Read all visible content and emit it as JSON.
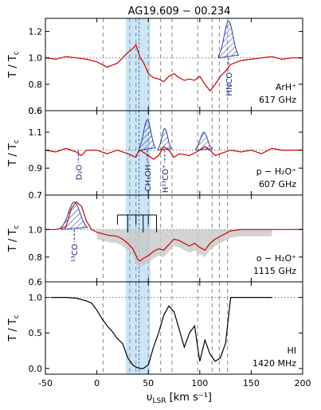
{
  "chart_data": {
    "type": "line",
    "title": "AG19.609 − 00.234",
    "xlabel": "υ",
    "xlabel_sub": "LSR",
    "xlabel_unit": " [km s⁻¹]",
    "xlim": [
      -50,
      200
    ],
    "xticks": [
      -50,
      0,
      50,
      100,
      150,
      200
    ],
    "shaded_band": [
      28,
      52
    ],
    "systemic_velocity": 41,
    "component_velocities": [
      6,
      32,
      38,
      50,
      62,
      73,
      98,
      112,
      119,
      127
    ],
    "colors": {
      "spectrum": "#cc0000",
      "hi": "#000000",
      "band": "#cce5f6",
      "hatch": "#2a3f9a",
      "label": "#1a237e",
      "vline": "#2b7cd3",
      "fit_gray": "#c8c8c8"
    },
    "panels": [
      {
        "id": "arhp",
        "ylabel": "T / T",
        "ylabel_sub": "c",
        "ylim": [
          0.6,
          1.3
        ],
        "yticks": [
          0.6,
          0.8,
          1.0,
          1.2
        ],
        "species": "ArH⁺",
        "frequency": "617 GHz",
        "baseline": 1.0,
        "series": {
          "x": [
            -50,
            -40,
            -30,
            -20,
            -10,
            0,
            10,
            20,
            25,
            30,
            35,
            38,
            40,
            42,
            45,
            48,
            50,
            55,
            60,
            65,
            70,
            75,
            80,
            85,
            90,
            95,
            100,
            105,
            110,
            115,
            120,
            125,
            130,
            140,
            150,
            160,
            170,
            180,
            190,
            200
          ],
          "y": [
            1.0,
            0.99,
            1.01,
            1.0,
            0.99,
            0.97,
            0.93,
            0.96,
            1.0,
            1.04,
            1.07,
            1.1,
            1.05,
            1.0,
            0.97,
            0.92,
            0.88,
            0.85,
            0.84,
            0.82,
            0.86,
            0.88,
            0.85,
            0.83,
            0.84,
            0.83,
            0.86,
            0.8,
            0.75,
            0.8,
            0.86,
            0.9,
            0.95,
            0.98,
            0.99,
            1.0,
            1.01,
            0.99,
            1.0,
            1.0
          ]
        },
        "emission": [
          {
            "label": "HNCO",
            "center": 128,
            "width": 6,
            "amp": 0.28,
            "arrow": "vline"
          }
        ]
      },
      {
        "id": "ph2op",
        "ylabel": "T / T",
        "ylabel_sub": "c",
        "ylim": [
          0.75,
          1.22
        ],
        "yticks": [
          0.9,
          1.0,
          1.1
        ],
        "yticklabels": [
          "0.9",
          "",
          "1.1"
        ],
        "ymin_label": "0.6",
        "species": "p − H₂O⁺",
        "frequency": "607 GHz",
        "baseline": 1.0,
        "series": {
          "x": [
            -50,
            -40,
            -30,
            -20,
            -15,
            -10,
            0,
            10,
            20,
            30,
            38,
            40,
            42,
            50,
            55,
            60,
            65,
            70,
            75,
            80,
            90,
            100,
            105,
            110,
            115,
            120,
            130,
            140,
            150,
            160,
            170,
            180,
            190,
            200
          ],
          "y": [
            1.0,
            0.99,
            1.01,
            0.99,
            0.97,
            1.0,
            1.0,
            0.98,
            1.0,
            0.98,
            0.96,
            0.99,
            1.0,
            0.97,
            0.95,
            0.97,
            1.02,
            1.0,
            0.96,
            0.98,
            0.97,
            1.0,
            1.02,
            1.0,
            0.97,
            0.98,
            1.0,
            0.99,
            1.0,
            0.98,
            1.01,
            1.0,
            1.0,
            1.0
          ]
        },
        "emission": [
          {
            "label": "CH₃OH",
            "center": 49,
            "width": 5,
            "amp": 0.17
          },
          {
            "label": "H¹³CO⁺",
            "center": 66,
            "width": 4,
            "amp": 0.12
          },
          {
            "label": "D₂O",
            "center": -18,
            "width": 0,
            "amp": 0.0
          },
          {
            "label": "",
            "center": 104,
            "width": 5,
            "amp": 0.1
          }
        ]
      },
      {
        "id": "oh2op",
        "ylabel": "T / T",
        "ylabel_sub": "c",
        "ylim": [
          0.62,
          1.25
        ],
        "yticks": [
          0.8,
          1.0
        ],
        "ymin_label": "0.7",
        "species": "o − H₂O⁺",
        "frequency": "1115 GHz",
        "baseline": 1.0,
        "series": {
          "x": [
            -50,
            -40,
            -30,
            -25,
            -20,
            -15,
            -10,
            -5,
            0,
            10,
            20,
            25,
            30,
            35,
            40,
            42,
            45,
            50,
            55,
            60,
            65,
            70,
            75,
            80,
            85,
            90,
            95,
            100,
            105,
            110,
            115,
            120,
            125,
            130,
            140,
            150,
            160,
            170,
            180,
            190,
            200
          ],
          "y": [
            1.0,
            1.0,
            1.02,
            1.15,
            1.2,
            1.17,
            1.06,
            1.0,
            0.98,
            0.96,
            0.95,
            0.93,
            0.9,
            0.86,
            0.78,
            0.77,
            0.79,
            0.81,
            0.84,
            0.86,
            0.85,
            0.89,
            0.93,
            0.92,
            0.9,
            0.88,
            0.9,
            0.87,
            0.85,
            0.9,
            0.93,
            0.95,
            0.97,
            0.99,
            1.0,
            1.0,
            1.0,
            1.0,
            1.0,
            1.0,
            1.0
          ]
        },
        "emission": [
          {
            "label": "¹³CO",
            "center": -22,
            "width": 8,
            "amp": 0.2
          }
        ],
        "hfs_ticks": [
          20,
          30,
          38,
          45,
          50,
          58
        ]
      },
      {
        "id": "hi",
        "ylabel": "T / T",
        "ylabel_sub": "c",
        "ylim": [
          -0.08,
          1.22
        ],
        "yticks": [
          0.0,
          0.5,
          1.0
        ],
        "ymin_label": "0.6",
        "species": "HI",
        "frequency": "1420 MHz",
        "baseline": 1.0,
        "series": {
          "x": [
            -45,
            -30,
            -20,
            -10,
            -5,
            0,
            5,
            10,
            15,
            20,
            25,
            30,
            35,
            38,
            42,
            45,
            50,
            55,
            60,
            65,
            70,
            75,
            80,
            85,
            90,
            95,
            100,
            105,
            110,
            115,
            120,
            125,
            130,
            140,
            150,
            160,
            170
          ],
          "y": [
            1.0,
            1.0,
            0.99,
            0.95,
            0.92,
            0.82,
            0.7,
            0.6,
            0.52,
            0.42,
            0.35,
            0.15,
            0.05,
            0.02,
            0.0,
            0.0,
            0.05,
            0.3,
            0.5,
            0.75,
            0.88,
            0.8,
            0.55,
            0.3,
            0.5,
            0.6,
            0.1,
            0.4,
            0.2,
            0.1,
            0.15,
            0.35,
            1.0,
            1.0,
            1.0,
            1.0,
            1.0
          ]
        },
        "emission": []
      }
    ]
  }
}
